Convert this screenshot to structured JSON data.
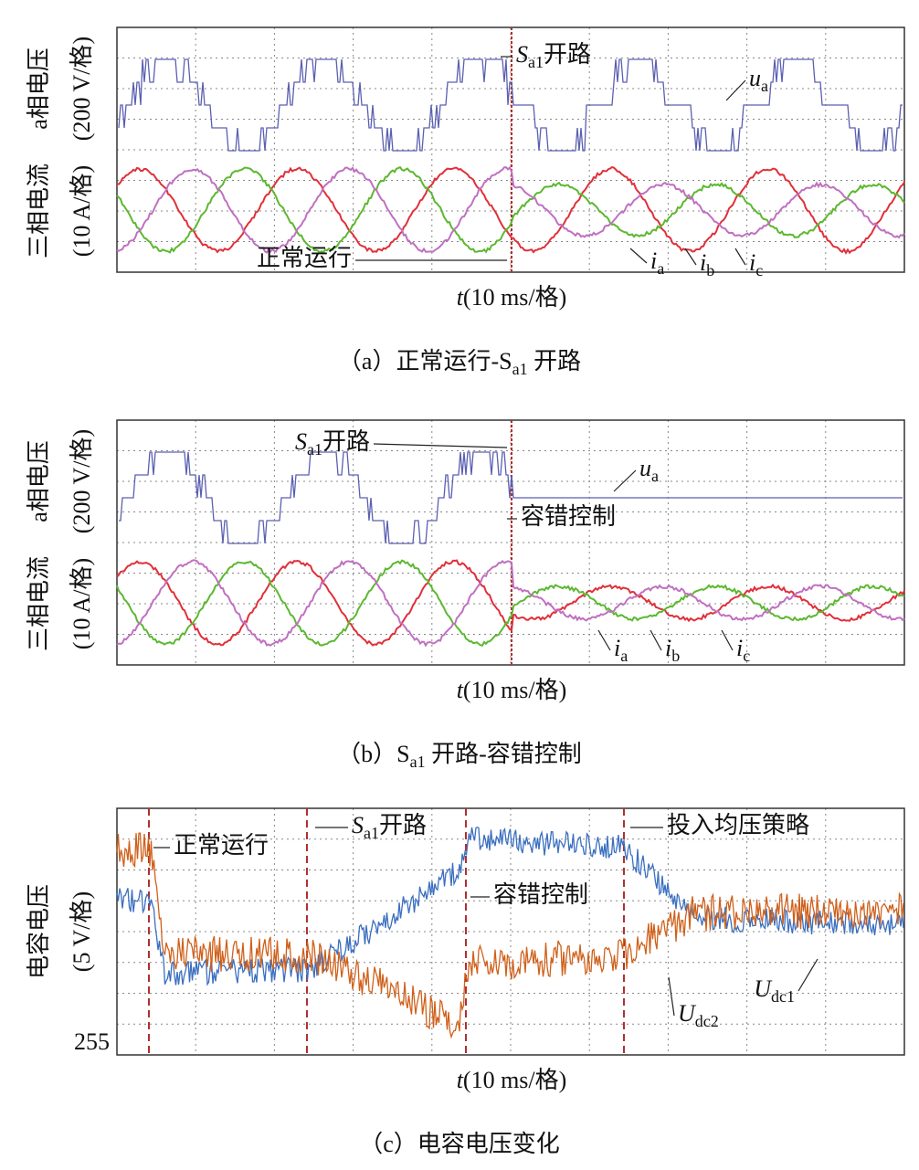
{
  "panels": [
    {
      "ylabels": [
        "三相电流",
        "(10 A/格)",
        "a相电压",
        "(200 V/格)"
      ],
      "xlabel": {
        "text": "t",
        "after": "(10 ms/格)"
      },
      "caption": {
        "text": "（a）正常运行-S",
        "sub": "a1",
        "after": " 开路"
      },
      "annotations": [
        {
          "text": "S",
          "sub": "a1",
          "after": "开路"
        },
        {
          "text": "u",
          "sub": "a"
        },
        {
          "text": "正常运行"
        },
        {
          "text": "i",
          "sub": "a"
        },
        {
          "text": "i",
          "sub": "b"
        },
        {
          "text": "i",
          "sub": "c"
        }
      ]
    },
    {
      "ylabels": [
        "三相电流",
        "(10 A/格)",
        "a相电压",
        "(200 V/格)"
      ],
      "xlabel": {
        "text": "t",
        "after": "(10 ms/格)"
      },
      "caption": {
        "text": "（b）S",
        "sub": "a1",
        "after": " 开路-容错控制"
      },
      "annotations": [
        {
          "text": "S",
          "sub": "a1",
          "after": "开路"
        },
        {
          "text": "u",
          "sub": "a"
        },
        {
          "text": "容错控制"
        },
        {
          "text": "i",
          "sub": "a"
        },
        {
          "text": "i",
          "sub": "b"
        },
        {
          "text": "i",
          "sub": "c"
        }
      ]
    },
    {
      "ylabels": [
        "电容电压",
        "(5 V/格)"
      ],
      "ytick": "255",
      "xlabel": {
        "text": "t",
        "after": "(10 ms/格)"
      },
      "caption": {
        "text": "（c）电容电压变化"
      },
      "annotations": [
        {
          "text": "正常运行"
        },
        {
          "text": "S",
          "sub": "a1",
          "after": "开路"
        },
        {
          "text": "投入均压策略"
        },
        {
          "text": "容错控制"
        },
        {
          "text": "U",
          "sub": "dc2"
        },
        {
          "text": "U",
          "sub": "dc1"
        }
      ]
    }
  ]
}
